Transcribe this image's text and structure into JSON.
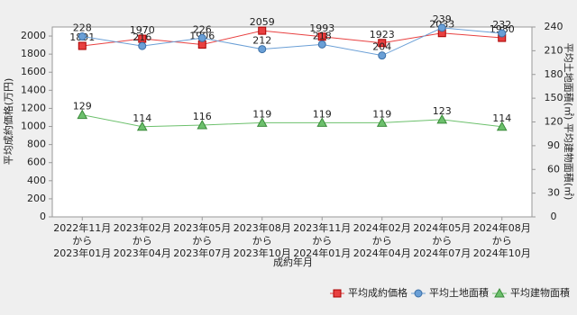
{
  "chart_data": {
    "type": "line",
    "categories": [
      [
        "2022年11月",
        "から",
        "2023年01月"
      ],
      [
        "2023年02月",
        "から",
        "2023年04月"
      ],
      [
        "2023年05月",
        "から",
        "2023年07月"
      ],
      [
        "2023年08月",
        "から",
        "2023年10月"
      ],
      [
        "2023年11月",
        "から",
        "2024年01月"
      ],
      [
        "2024年02月",
        "から",
        "2024年04月"
      ],
      [
        "2024年05月",
        "から",
        "2024年07月"
      ],
      [
        "2024年08月",
        "から",
        "2024年10月"
      ]
    ],
    "x_label": "成約年月",
    "y_label": "平均成約価格(万円)",
    "y2_label": "平均土地面積(㎡)  平均建物面積(㎡)",
    "ylim": [
      0,
      2100
    ],
    "yticks": [
      0,
      200,
      400,
      600,
      800,
      1000,
      1200,
      1400,
      1600,
      1800,
      2000
    ],
    "y2lim": [
      0,
      240
    ],
    "y2ticks": [
      0,
      30,
      60,
      90,
      120,
      150,
      180,
      210,
      240
    ],
    "legend": "bottom-right",
    "series": [
      {
        "name": "平均成約価格",
        "color": "#e84040",
        "marker": "square",
        "values": [
          1891,
          1970,
          1906,
          2059,
          1993,
          1923,
          2033,
          1980
        ]
      },
      {
        "name": "平均土地面積",
        "color": "#6a9fd6",
        "marker": "circle",
        "axis": "y2",
        "values": [
          228,
          216,
          226,
          212,
          218,
          204,
          239,
          232
        ]
      },
      {
        "name": "平均建物面積",
        "color": "#6cc06c",
        "marker": "triangle",
        "axis": "y2",
        "values": [
          129,
          114,
          116,
          119,
          119,
          119,
          123,
          114
        ]
      }
    ]
  }
}
